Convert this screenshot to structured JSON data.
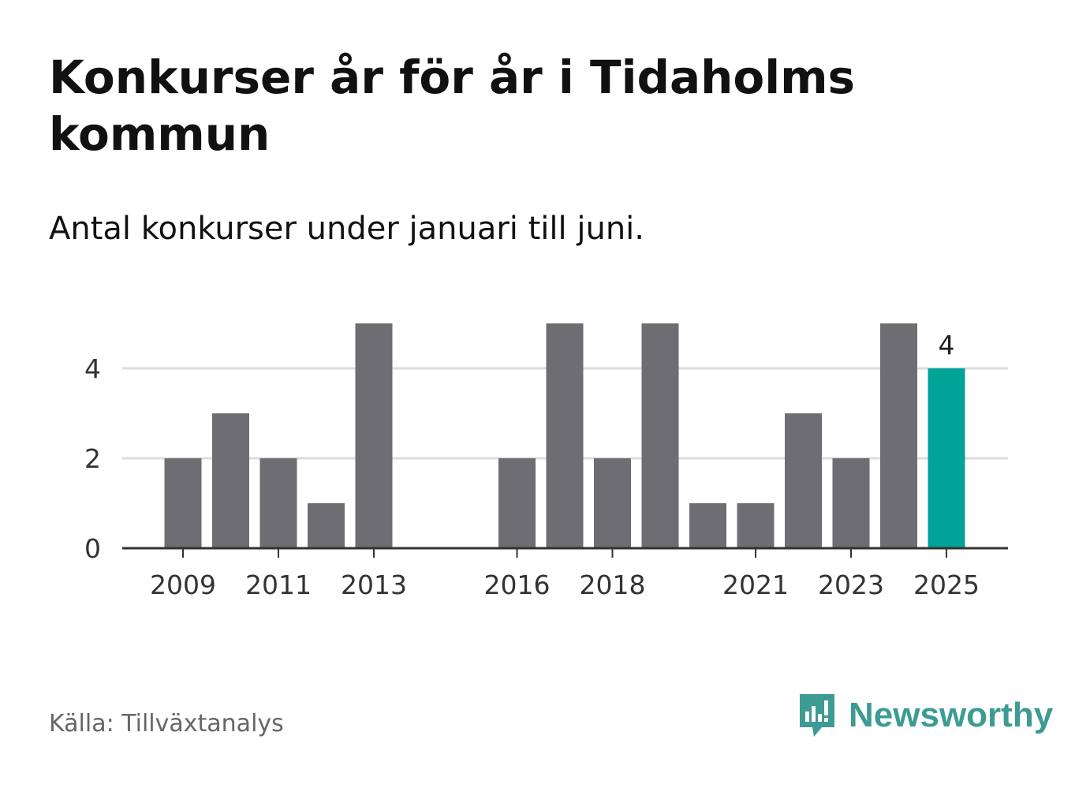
{
  "title": "Konkurser år för år i Tidaholms kommun",
  "subtitle": "Antal konkurser under januari till juni.",
  "source": "Källa: Tillväxtanalys",
  "brand": {
    "name": "Newsworthy",
    "color": "#3d9b94",
    "icon": "newsworthy-logo-icon"
  },
  "colors": {
    "bar": "#6e6d72",
    "highlight": "#00a398",
    "grid": "#dddddd",
    "axis": "#333333"
  },
  "chart_data": {
    "type": "bar",
    "title": "Konkurser år för år i Tidaholms kommun",
    "subtitle": "Antal konkurser under januari till juni.",
    "xlabel": "",
    "ylabel": "",
    "ylim": [
      0,
      5
    ],
    "grid": true,
    "yticks": [
      0,
      2,
      4
    ],
    "categories": [
      "2009",
      "2010",
      "2011",
      "2012",
      "2013",
      "2014",
      "2015",
      "2016",
      "2017",
      "2018",
      "2019",
      "2020",
      "2021",
      "2022",
      "2023",
      "2024",
      "2025"
    ],
    "values": [
      2,
      3,
      2,
      1,
      5,
      0,
      0,
      2,
      5,
      2,
      5,
      1,
      1,
      3,
      2,
      5,
      4
    ],
    "xtick_labels": [
      "2009",
      "2011",
      "2013",
      "2016",
      "2018",
      "2021",
      "2023",
      "2025"
    ],
    "highlight": "2025",
    "highlight_label": "4"
  }
}
